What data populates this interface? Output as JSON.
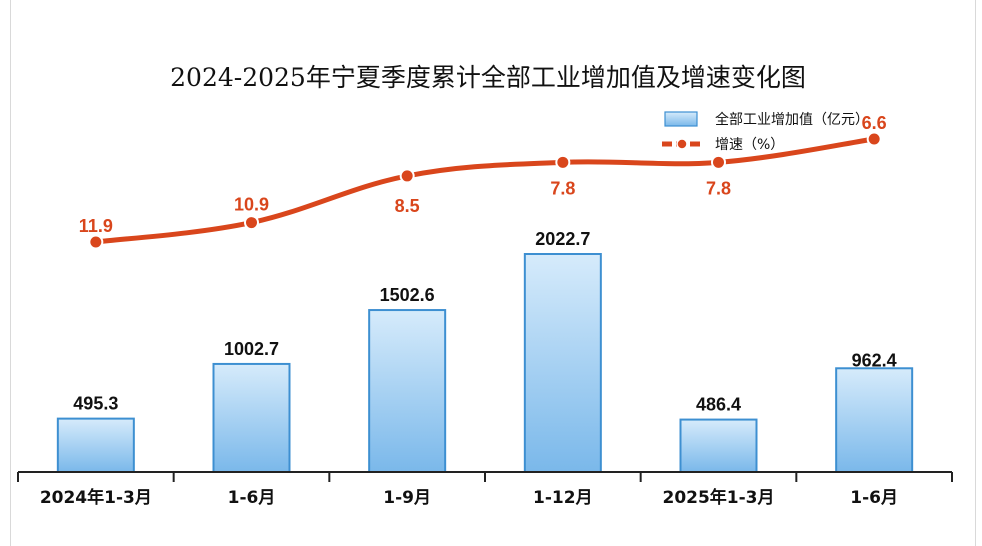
{
  "chart_data": {
    "type": "bar",
    "title": "2024-2025年宁夏季度累计全部工业增加值及增速变化图",
    "categories": [
      "2024年1-3月",
      "1-6月",
      "1-9月",
      "1-12月",
      "2025年1-3月",
      "1-6月"
    ],
    "series": [
      {
        "name": "全部工业增加值（亿元）",
        "type": "bar",
        "values": [
          495.3,
          1002.7,
          1502.6,
          2022.7,
          486.4,
          962.4
        ],
        "labels": [
          "495.3",
          "1002.7",
          "1502.6",
          "2022.7",
          "486.4",
          "962.4"
        ],
        "color": "#7ab8ea"
      },
      {
        "name": "增速（%）",
        "type": "line",
        "values": [
          11.9,
          10.9,
          8.5,
          7.8,
          7.8,
          6.6
        ],
        "labels": [
          "11.9",
          "10.9",
          "8.5",
          "7.8",
          "7.8",
          "6.6"
        ],
        "color": "#d9461c"
      }
    ],
    "ylim": [
      0,
      2400
    ],
    "y2lim": [
      0,
      15
    ],
    "grid": false,
    "legend_position": "top-right"
  }
}
